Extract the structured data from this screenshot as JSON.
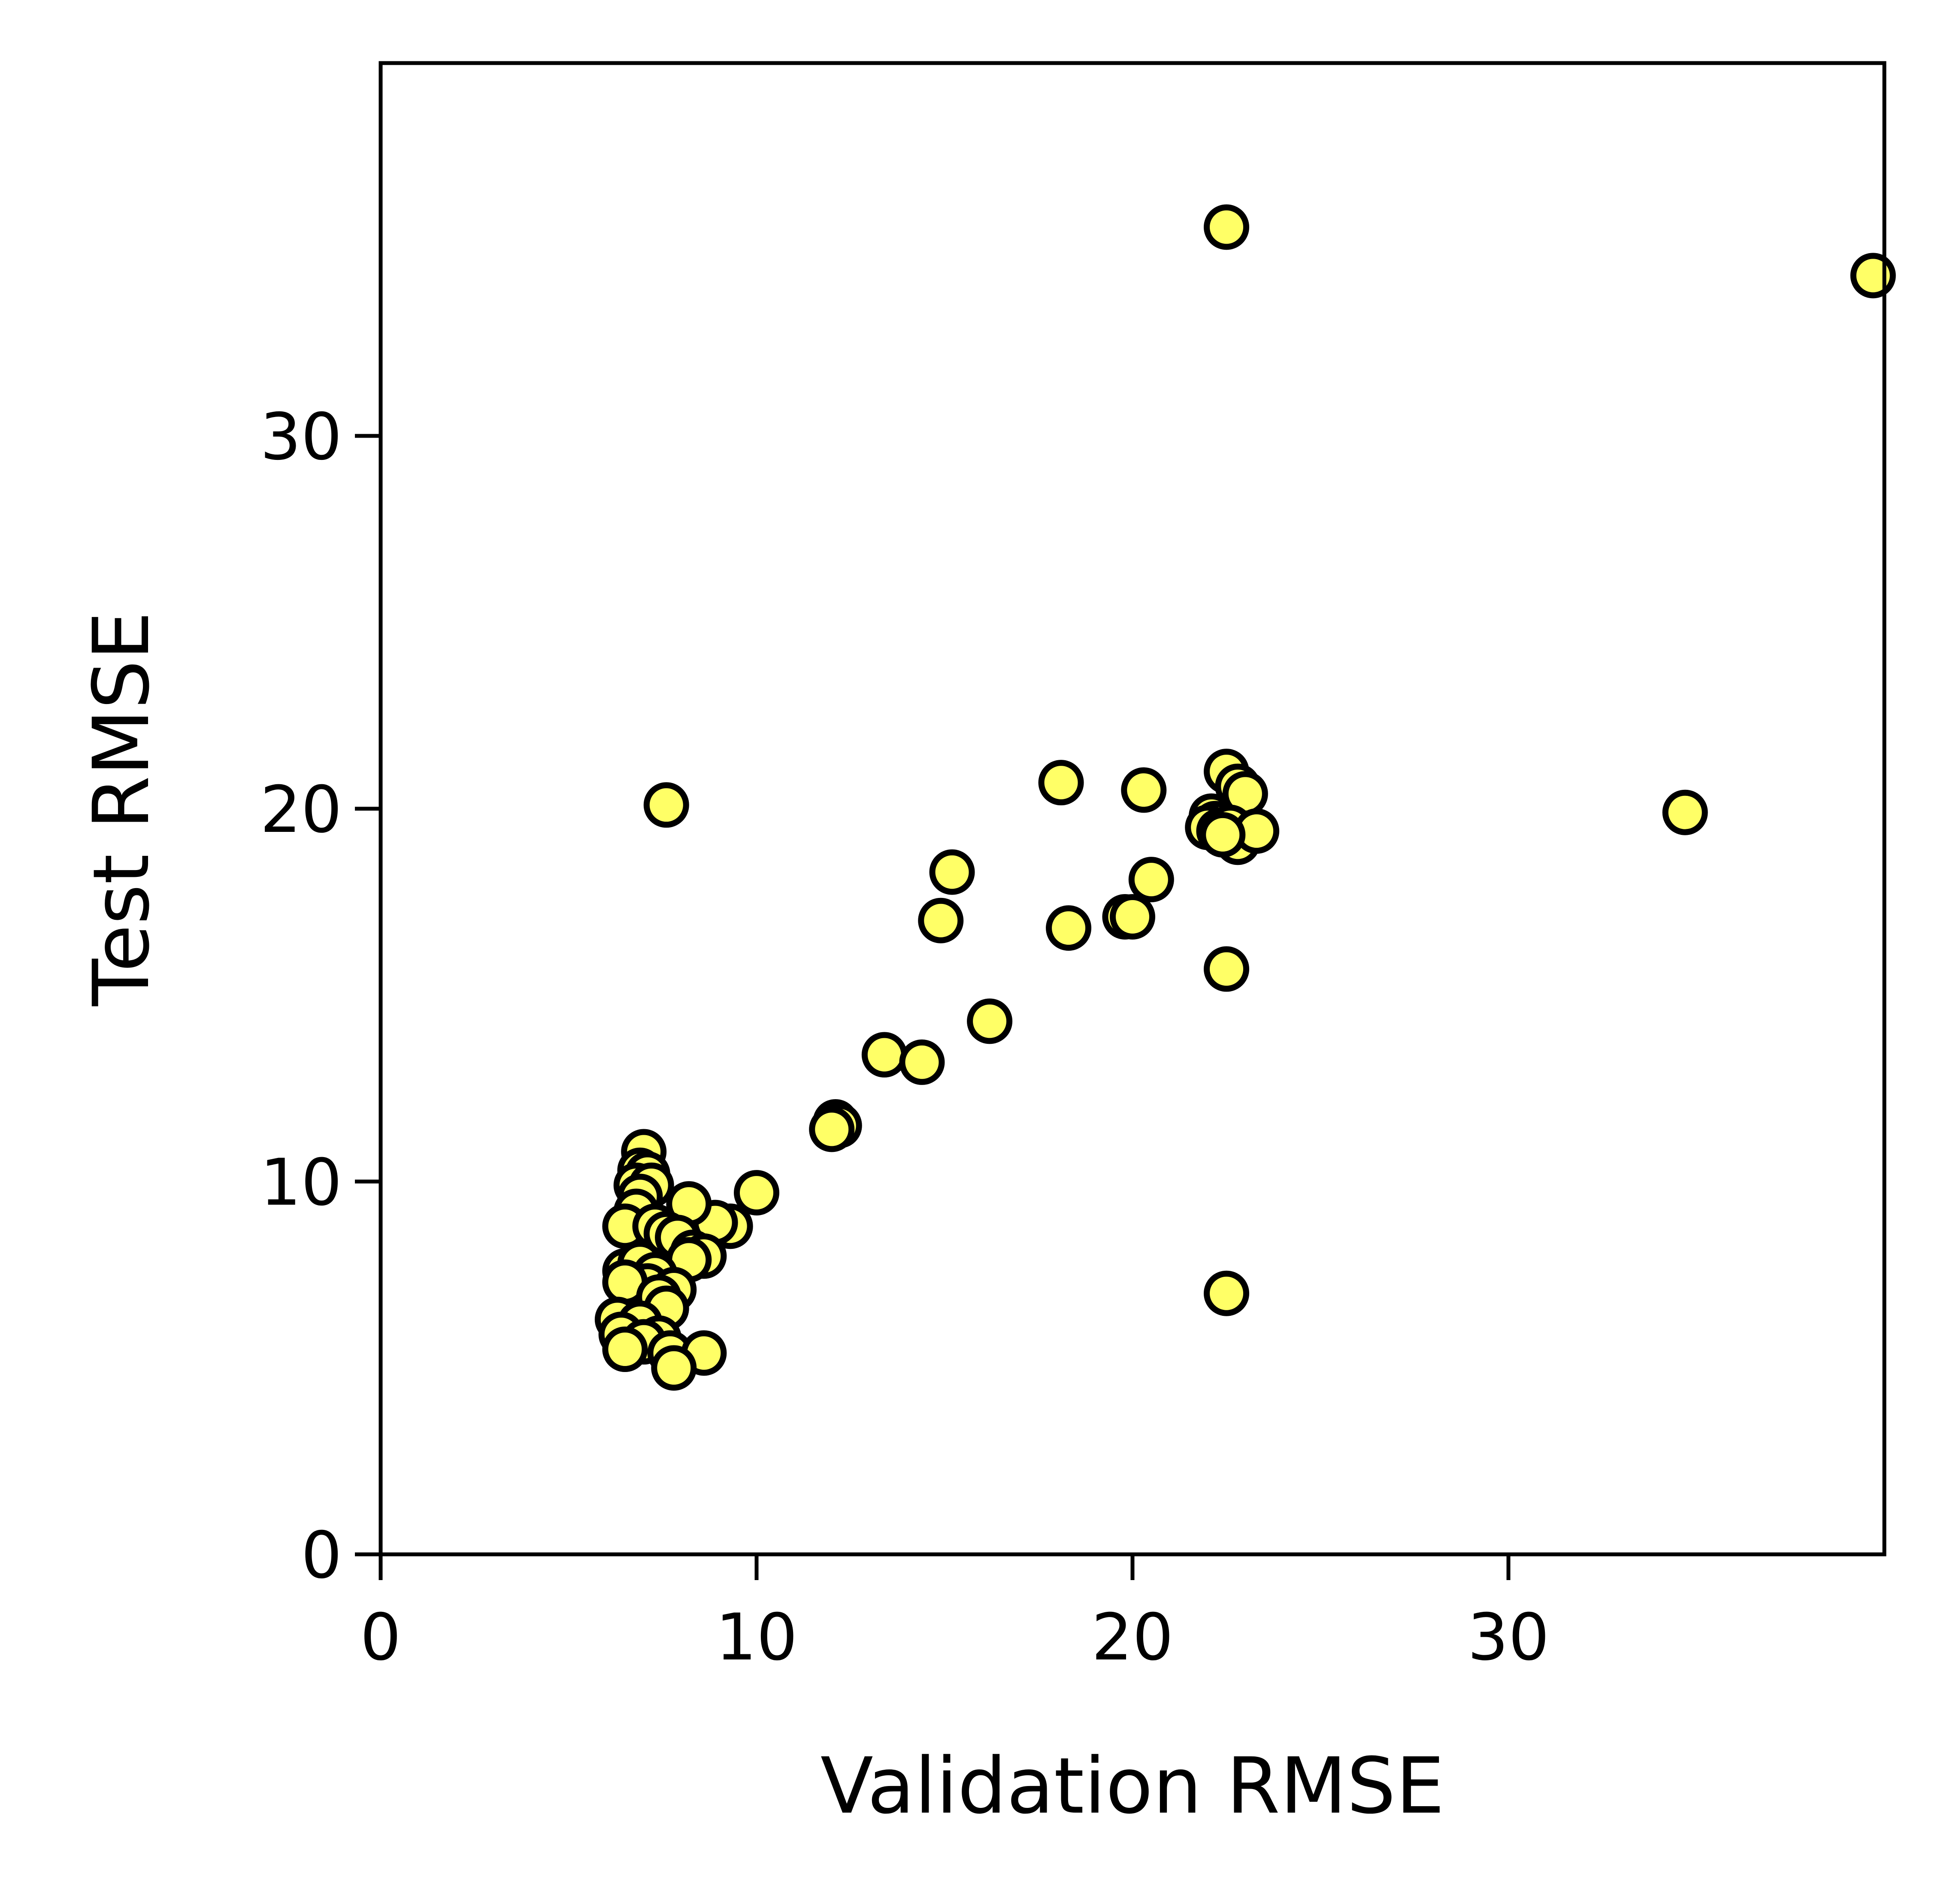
{
  "chart_data": {
    "type": "scatter",
    "title": "",
    "xlabel": "Validation RMSE",
    "ylabel": "Test RMSE",
    "xlim": [
      0,
      40
    ],
    "ylim": [
      0,
      40
    ],
    "xticks": [
      0,
      10,
      20,
      30
    ],
    "yticks": [
      0,
      10,
      20,
      30
    ],
    "grid": false,
    "marker_color": "#ffff66",
    "marker_edge_color": "#000000",
    "points": [
      [
        22.5,
        35.6
      ],
      [
        39.7,
        34.3
      ],
      [
        7.6,
        20.1
      ],
      [
        18.1,
        20.7
      ],
      [
        20.3,
        20.5
      ],
      [
        22.5,
        21.0
      ],
      [
        22.8,
        20.6
      ],
      [
        23.0,
        20.4
      ],
      [
        22.1,
        19.8
      ],
      [
        22.2,
        19.6
      ],
      [
        22.0,
        19.5
      ],
      [
        22.3,
        19.4
      ],
      [
        22.6,
        19.5
      ],
      [
        22.8,
        19.1
      ],
      [
        23.3,
        19.4
      ],
      [
        22.4,
        19.3
      ],
      [
        34.7,
        19.9
      ],
      [
        15.2,
        18.3
      ],
      [
        20.5,
        18.1
      ],
      [
        14.9,
        17.0
      ],
      [
        18.3,
        16.8
      ],
      [
        19.8,
        17.1
      ],
      [
        20.0,
        17.1
      ],
      [
        22.5,
        15.7
      ],
      [
        16.2,
        14.3
      ],
      [
        13.4,
        13.4
      ],
      [
        14.4,
        13.2
      ],
      [
        12.1,
        11.6
      ],
      [
        12.2,
        11.5
      ],
      [
        12.0,
        11.4
      ],
      [
        10.0,
        9.7
      ],
      [
        9.3,
        8.8
      ],
      [
        8.9,
        8.9
      ],
      [
        7.0,
        10.8
      ],
      [
        6.9,
        10.3
      ],
      [
        7.1,
        10.2
      ],
      [
        6.8,
        9.9
      ],
      [
        7.2,
        9.9
      ],
      [
        6.9,
        9.6
      ],
      [
        8.2,
        9.4
      ],
      [
        6.8,
        9.2
      ],
      [
        6.5,
        8.8
      ],
      [
        7.3,
        8.8
      ],
      [
        7.6,
        8.6
      ],
      [
        7.9,
        8.5
      ],
      [
        8.3,
        8.1
      ],
      [
        8.6,
        8.0
      ],
      [
        8.2,
        7.9
      ],
      [
        6.5,
        7.6
      ],
      [
        6.9,
        7.8
      ],
      [
        7.3,
        7.5
      ],
      [
        7.1,
        7.2
      ],
      [
        7.8,
        7.1
      ],
      [
        6.5,
        7.3
      ],
      [
        7.4,
        6.9
      ],
      [
        7.6,
        6.6
      ],
      [
        6.3,
        6.3
      ],
      [
        6.9,
        6.2
      ],
      [
        7.4,
        5.8
      ],
      [
        6.4,
        5.9
      ],
      [
        7.0,
        5.7
      ],
      [
        6.5,
        5.5
      ],
      [
        7.7,
        5.4
      ],
      [
        8.6,
        5.4
      ],
      [
        7.8,
        5.0
      ],
      [
        22.5,
        7.0
      ]
    ]
  }
}
